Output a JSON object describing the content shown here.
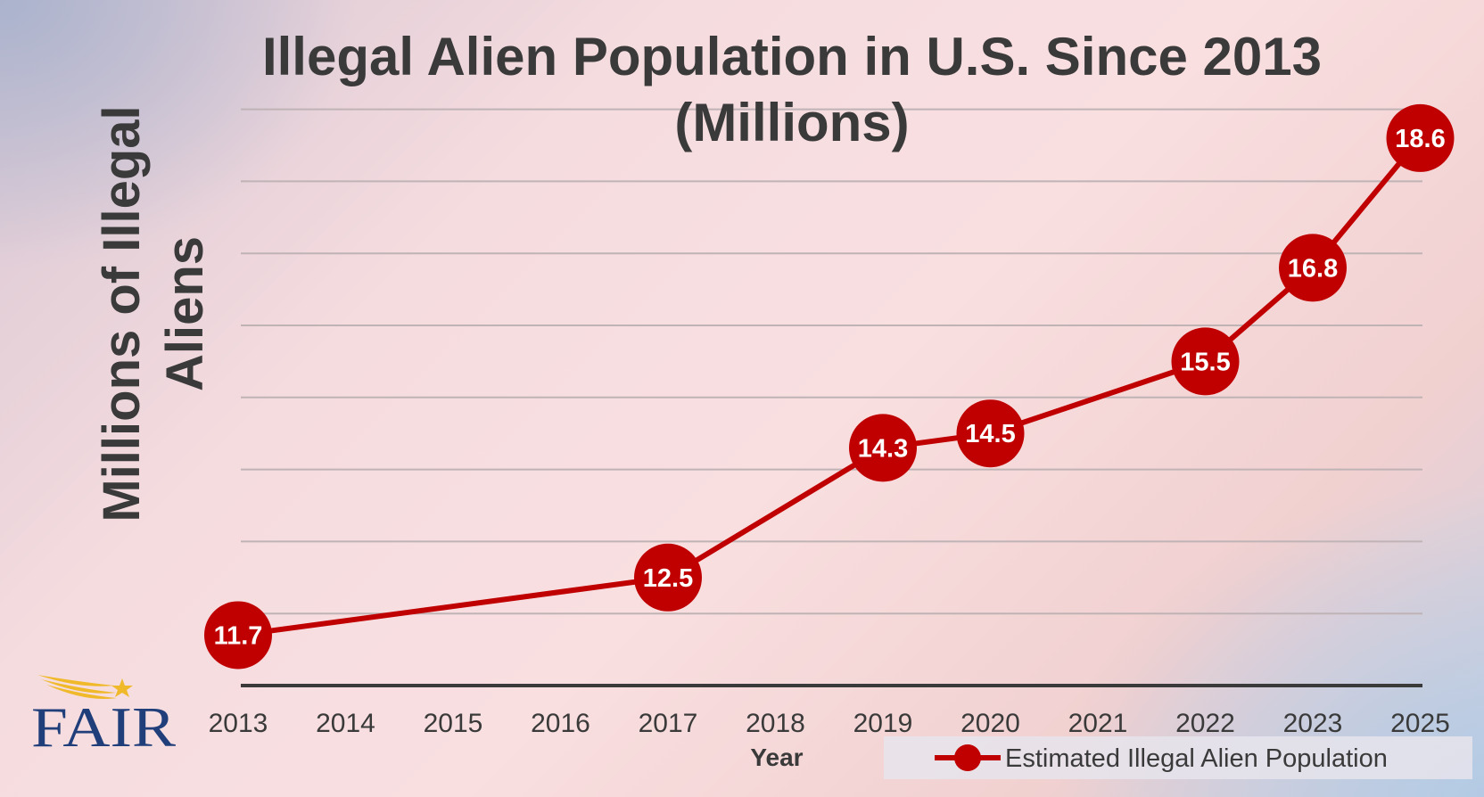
{
  "colors": {
    "line": "#c00000",
    "marker": "#c00000",
    "gridline": "#bfb3b6",
    "axis": "#3a3a3a",
    "text": "#3a3a3a",
    "logo_text": "#1f3e7a",
    "logo_swoosh": "#f0b92a",
    "legend_bg": "#e6e4ec"
  },
  "logo": {
    "text": "FAIR",
    "icon": "star-swoosh-icon"
  },
  "chart_data": {
    "type": "line",
    "title_lines": [
      "Illegal Alien Population in U.S. Since 2013",
      "(Millions)"
    ],
    "xlabel": "Year",
    "ylabel_lines": [
      "Millions of Illegal",
      "Aliens"
    ],
    "categories": [
      "2013",
      "2014",
      "2015",
      "2016",
      "2017",
      "2018",
      "2019",
      "2020",
      "2021",
      "2022",
      "2023",
      "2025"
    ],
    "ylim": [
      11,
      19
    ],
    "grid": true,
    "legend_position": "bottom-right",
    "series": [
      {
        "name": "Estimated Illegal Alien Population",
        "points": [
          {
            "x": "2013",
            "y": 11.7,
            "label": "11.7"
          },
          {
            "x": "2017",
            "y": 12.5,
            "label": "12.5"
          },
          {
            "x": "2019",
            "y": 14.3,
            "label": "14.3"
          },
          {
            "x": "2020",
            "y": 14.5,
            "label": "14.5"
          },
          {
            "x": "2022",
            "y": 15.5,
            "label": "15.5"
          },
          {
            "x": "2023",
            "y": 16.8,
            "label": "16.8"
          },
          {
            "x": "2025",
            "y": 18.6,
            "label": "18.6"
          }
        ]
      }
    ]
  }
}
